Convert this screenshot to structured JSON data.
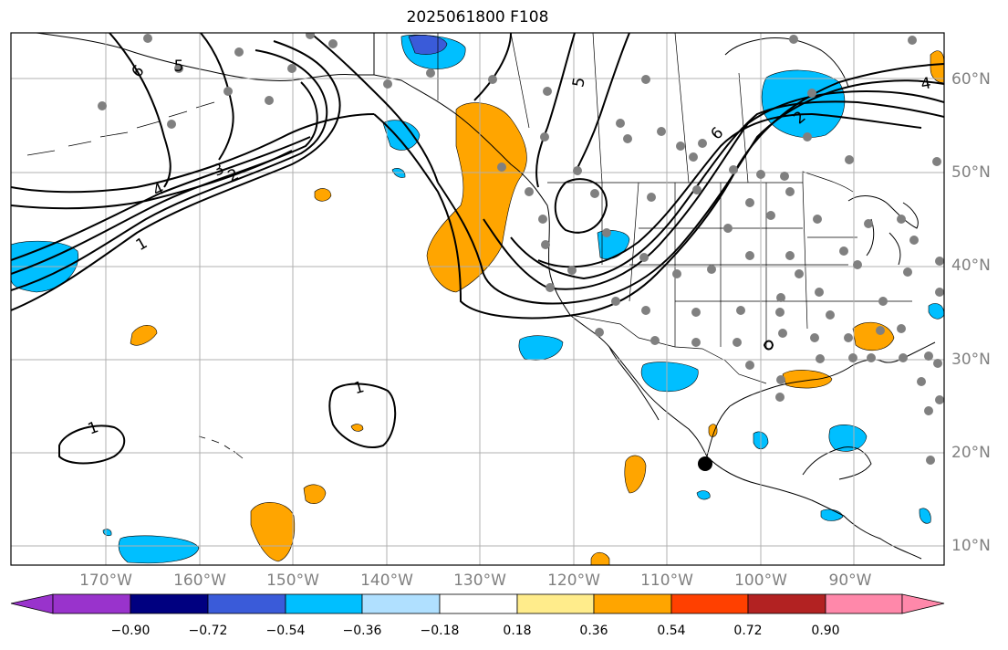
{
  "title": "2025061800 F108",
  "lon_labels": [
    "170°W",
    "160°W",
    "150°W",
    "140°W",
    "130°W",
    "120°W",
    "110°W",
    "100°W",
    "90°W"
  ],
  "lat_labels": [
    "60°N",
    "50°N",
    "40°N",
    "30°N",
    "20°N",
    "10°N"
  ],
  "contour_labels": [
    "6",
    "5",
    "4",
    "3",
    "2",
    "1",
    "1",
    "1",
    "5",
    "6",
    "2",
    "4"
  ],
  "colorbar": {
    "ticks": [
      "−0.90",
      "−0.72",
      "−0.54",
      "−0.36",
      "−0.18",
      "0.18",
      "0.36",
      "0.54",
      "0.72",
      "0.90"
    ],
    "colors": [
      "#9933cc",
      "#000080",
      "#3a5bd9",
      "#00bfff",
      "#b0e0ff",
      "#ffffff",
      "#ffec8b",
      "#ffa500",
      "#ff4000",
      "#b22222",
      "#ff88aa"
    ]
  },
  "colors": {
    "positive": "#ffa500",
    "negative": "#00bfff",
    "strong_negative": "#3a5bd9",
    "station": "#808080",
    "grid": "#b0b0b0"
  },
  "marker": "black-dot"
}
